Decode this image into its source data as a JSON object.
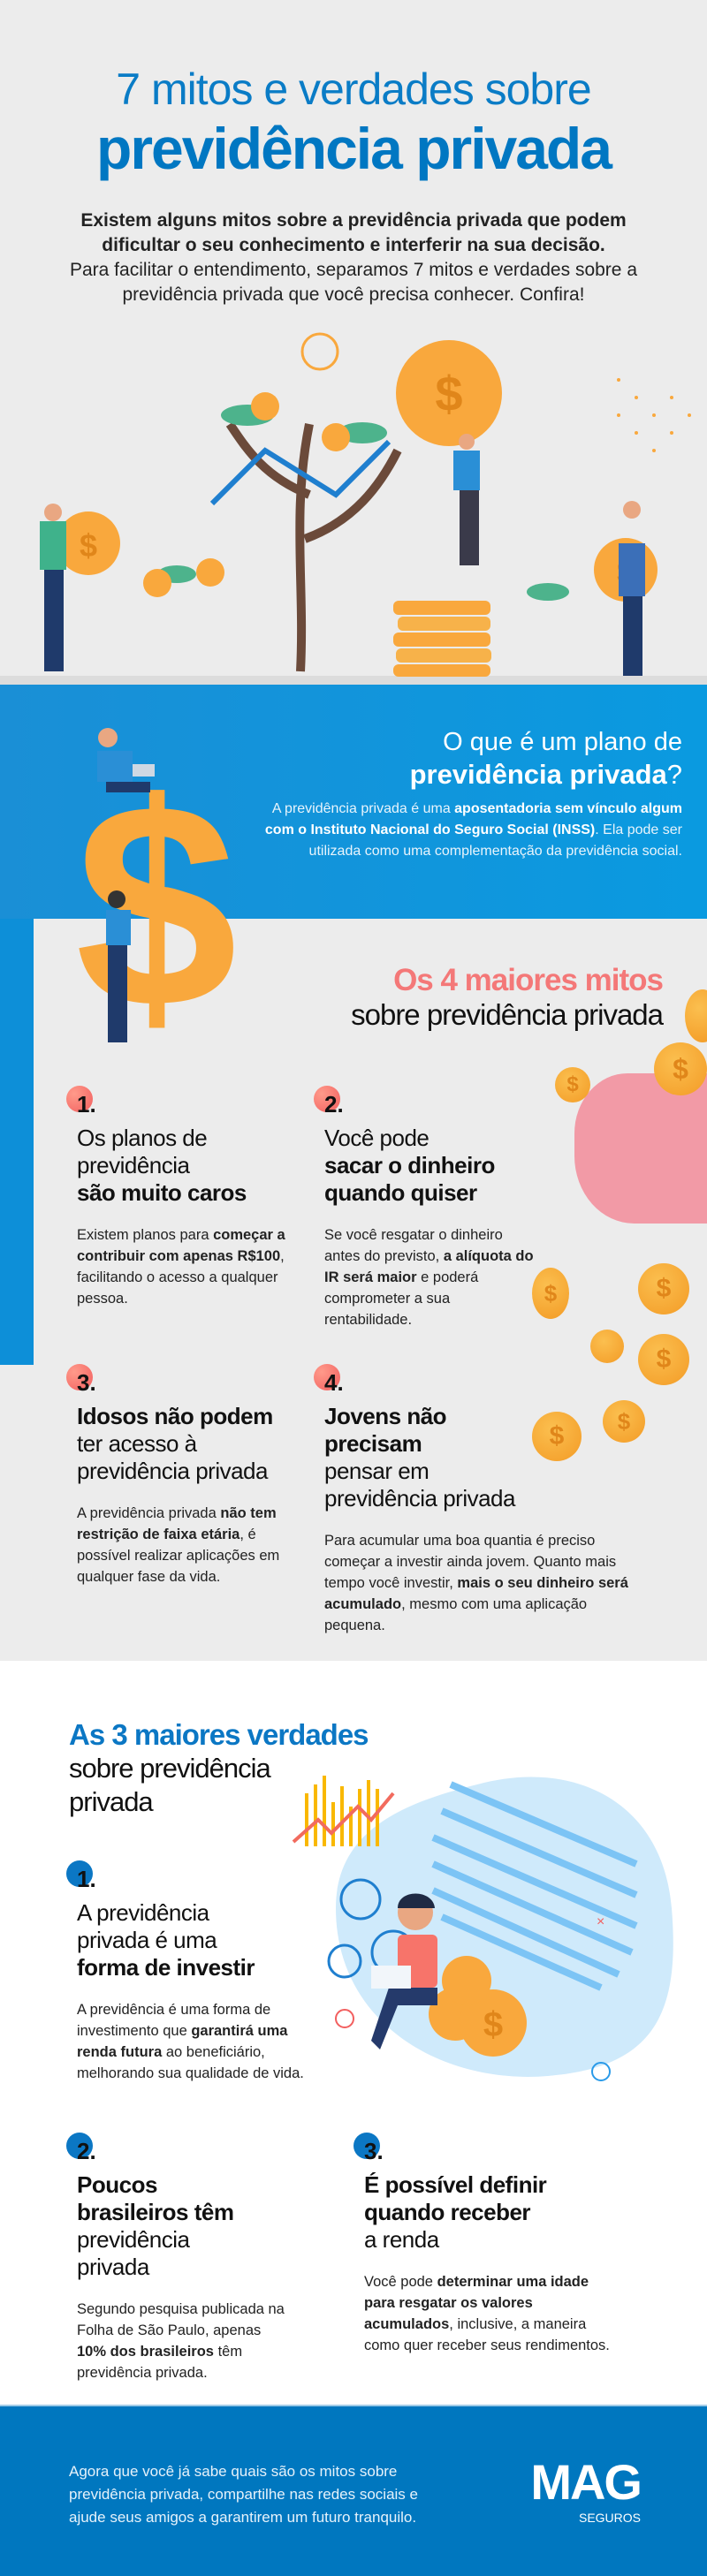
{
  "header": {
    "title_line1": "7 mitos e verdades sobre",
    "title_line2": "previdência privada",
    "intro_bold": "Existem alguns mitos sobre a previdência privada que podem dificultar o seu conhecimento e interferir na sua decisão.",
    "intro_regular": "Para facilitar o entendimento, separamos 7 mitos e verdades sobre a previdência privada que você precisa conhecer. Confira!"
  },
  "whatis": {
    "title_line1": "O que é um plano de",
    "title_bold": "previdência privada",
    "title_mark": "?",
    "body": [
      "A previdência privada é uma ",
      "aposentadoria sem vínculo algum com o Instituto Nacional do Seguro Social (INSS)",
      ". Ela pode ser utilizada como uma complementação da previdência social."
    ]
  },
  "myths": {
    "title_bold": "Os 4 maiores mitos",
    "title_regular": "sobre previdência privada",
    "items": [
      {
        "number": "1.",
        "head": [
          "Os planos de previdência",
          "são muito caros"
        ],
        "body": [
          "Existem planos para ",
          "começar a contribuir com apenas R$100",
          ", facilitando o acesso a qualquer pessoa."
        ]
      },
      {
        "number": "2.",
        "head": [
          "Você pode",
          "sacar o dinheiro quando quiser"
        ],
        "body": [
          "Se você resgatar o dinheiro antes do  previsto, ",
          "a alíquota do IR será maior",
          " e poderá comprometer a sua rentabilidade."
        ]
      },
      {
        "number": "3.",
        "head": [
          "Idosos não podem",
          "ter acesso à previdência privada"
        ],
        "body": [
          "A previdência privada ",
          "não tem restrição de faixa etária",
          ", é possível realizar aplicações em qualquer fase da vida."
        ]
      },
      {
        "number": "4.",
        "head": [
          "Jovens não precisam",
          "pensar em previdência privada"
        ],
        "body": [
          "Para acumular uma boa quantia é preciso começar a investir ainda jovem. Quanto mais tempo você investir, ",
          "mais o seu dinheiro será acumulado",
          ", mesmo com uma aplicação pequena."
        ]
      }
    ]
  },
  "truths": {
    "title_bold": "As 3 maiores verdades",
    "title_regular": "sobre previdência privada",
    "items": [
      {
        "number": "1.",
        "head": [
          "A previdência privada é uma",
          "forma de investir"
        ],
        "body": [
          "A previdência é uma forma de investimento que ",
          "garantirá uma renda futura",
          " ao beneficiário, melhorando sua qualidade de vida."
        ]
      },
      {
        "number": "2.",
        "head": [
          "Poucos brasileiros têm",
          "previdência privada"
        ],
        "body": [
          "Segundo pesquisa publicada na Folha de São Paulo, apenas ",
          "10% dos brasileiros",
          " têm previdência privada."
        ]
      },
      {
        "number": "3.",
        "head": [
          "É possível definir quando receber",
          "a renda"
        ],
        "body": [
          "Você pode ",
          "determinar uma idade para resgatar os valores acumulados",
          ", inclusive, a maneira como quer receber seus rendimentos."
        ]
      }
    ]
  },
  "footer": {
    "text": "Agora que você já sabe quais são os mitos sobre previdência privada, compartilhe nas redes sociais e ajude seus amigos a garantirem um futuro tranquilo.",
    "logo": "MAG",
    "logo_sub": "SEGUROS"
  },
  "colors": {
    "brand_blue": "#0077c2",
    "myth_accent": "#f47878",
    "coin": "#f9a83d"
  },
  "icons": {
    "coin": "dollar-coin-icon"
  }
}
